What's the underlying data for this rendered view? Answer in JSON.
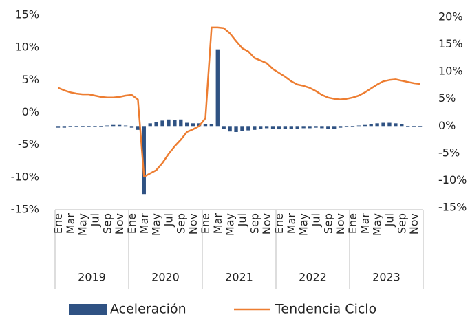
{
  "chart_data": {
    "type": "bar-line",
    "categories": [
      "Ene",
      null,
      "Mar",
      null,
      "May",
      null,
      "Jul",
      null,
      "Sep",
      null,
      "Nov",
      null,
      "Ene",
      null,
      "Mar",
      null,
      "May",
      null,
      "Jul",
      null,
      "Sep",
      null,
      "Nov",
      null,
      "Ene",
      null,
      "Mar",
      null,
      "May",
      null,
      "Jul",
      null,
      "Sep",
      null,
      "Nov",
      null,
      "Ene",
      null,
      "Mar",
      null,
      "May",
      null,
      "Jul",
      null,
      "Sep",
      null,
      "Nov",
      null,
      "Ene",
      null,
      "Mar",
      null,
      "May",
      null,
      "Jul",
      null,
      "Sep",
      null,
      "Nov",
      null
    ],
    "year_labels": [
      "2019",
      "2020",
      "2021",
      "2022",
      "2023"
    ],
    "series": [
      {
        "name": "Aceleración",
        "type": "bar",
        "axis": "y2",
        "color": "#2f5283",
        "values": [
          -0.3,
          -0.3,
          -0.2,
          -0.2,
          -0.1,
          -0.1,
          -0.2,
          -0.1,
          0.1,
          0.2,
          0.2,
          0.1,
          -0.3,
          -0.7,
          -12.5,
          0.5,
          0.7,
          1.0,
          1.2,
          1.1,
          1.2,
          0.6,
          0.5,
          0.5,
          0.4,
          0.3,
          14.1,
          -0.5,
          -1.0,
          -1.1,
          -0.9,
          -0.8,
          -0.7,
          -0.5,
          -0.4,
          -0.5,
          -0.6,
          -0.5,
          -0.5,
          -0.5,
          -0.4,
          -0.4,
          -0.3,
          -0.4,
          -0.5,
          -0.5,
          -0.3,
          -0.2,
          -0.1,
          0.1,
          0.2,
          0.4,
          0.5,
          0.6,
          0.6,
          0.5,
          0.3,
          -0.1,
          -0.2,
          -0.2
        ]
      },
      {
        "name": "Tendencia Ciclo",
        "type": "line",
        "axis": "y",
        "color": "#ed7d31",
        "values": [
          3.8,
          3.4,
          3.1,
          2.9,
          2.8,
          2.8,
          2.6,
          2.4,
          2.3,
          2.3,
          2.4,
          2.6,
          2.7,
          2.0,
          -9.9,
          -9.4,
          -8.9,
          -7.8,
          -6.4,
          -5.2,
          -4.2,
          -3.0,
          -2.6,
          -2.1,
          -0.9,
          13.1,
          13.1,
          13.0,
          12.2,
          11.0,
          9.9,
          9.4,
          8.4,
          8.0,
          7.6,
          6.7,
          6.1,
          5.5,
          4.8,
          4.3,
          4.1,
          3.8,
          3.3,
          2.7,
          2.3,
          2.1,
          2.0,
          2.1,
          2.3,
          2.6,
          3.1,
          3.7,
          4.3,
          4.8,
          5.0,
          5.1,
          4.9,
          4.7,
          4.5,
          4.4
        ]
      }
    ],
    "ylim": [
      -15,
      15
    ],
    "yticks": [
      {
        "value": 15,
        "label": "15%"
      },
      {
        "value": 10,
        "label": "10%"
      },
      {
        "value": 5,
        "label": "5%"
      },
      {
        "value": 0,
        "label": "0%"
      },
      {
        "value": -5,
        "label": "-5%"
      },
      {
        "value": -10,
        "label": "-10%"
      },
      {
        "value": -15,
        "label": "-15%"
      }
    ],
    "y2lim": [
      -15,
      20
    ],
    "y2ticks": [
      {
        "value": 20,
        "label": "20%"
      },
      {
        "value": 15,
        "label": "15%"
      },
      {
        "value": 10,
        "label": "10%"
      },
      {
        "value": 5,
        "label": "5%"
      },
      {
        "value": 0,
        "label": "0%"
      },
      {
        "value": -5,
        "label": "-5%"
      },
      {
        "value": -10,
        "label": "-10%"
      },
      {
        "value": -15,
        "label": "-15%"
      }
    ],
    "legend": "bottom"
  }
}
